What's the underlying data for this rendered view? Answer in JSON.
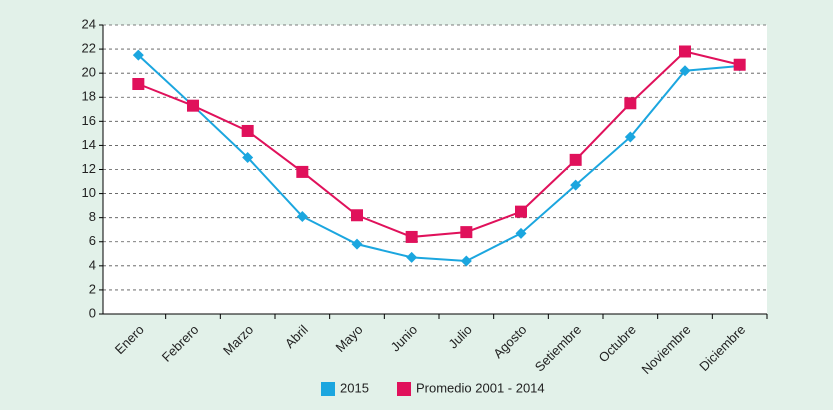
{
  "chart_data": {
    "type": "line",
    "categories": [
      "Enero",
      "Febrero",
      "Marzo",
      "Abril",
      "Mayo",
      "Junio",
      "Julio",
      "Agosto",
      "Setiembre",
      "Octubre",
      "Noviembre",
      "Diciembre"
    ],
    "series": [
      {
        "name": "2015",
        "color": "#1ba6df",
        "marker": "diamond",
        "values": [
          21.5,
          17.3,
          13,
          8.1,
          5.8,
          4.7,
          4.4,
          6.7,
          10.7,
          14.7,
          20.2,
          20.6
        ]
      },
      {
        "name": "Promedio 2001 - 2014",
        "color": "#e0115b",
        "marker": "square",
        "values": [
          19.1,
          17.3,
          15.2,
          11.8,
          8.2,
          6.4,
          6.8,
          8.5,
          12.8,
          17.5,
          21.8,
          20.7
        ]
      }
    ],
    "ylim": [
      0,
      24
    ],
    "yticks": [
      0,
      2,
      4,
      6,
      8,
      10,
      12,
      14,
      16,
      18,
      20,
      22,
      24
    ],
    "grid": true,
    "legend": "bottom"
  }
}
